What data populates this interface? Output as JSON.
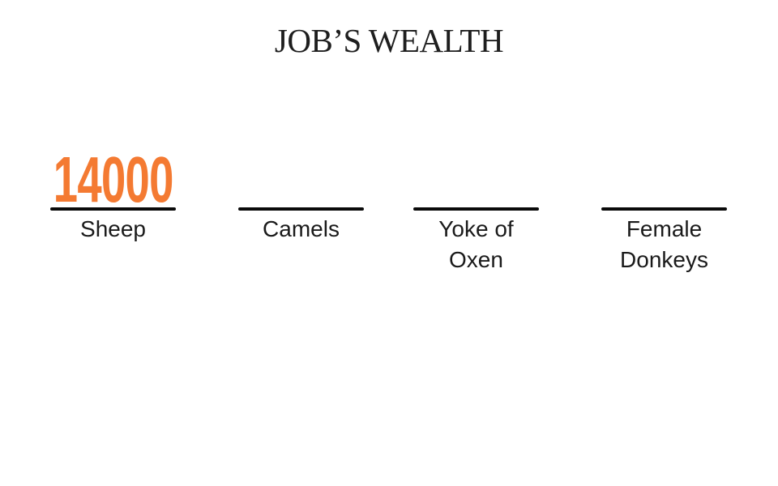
{
  "title": "JOB’S WEALTH",
  "accent_color": "#f47a32",
  "items": [
    {
      "label": "Sheep",
      "value": "14000"
    },
    {
      "label": "Camels",
      "value": ""
    },
    {
      "label": "Yoke of Oxen",
      "value": ""
    },
    {
      "label": "Female Donkeys",
      "value": ""
    }
  ]
}
